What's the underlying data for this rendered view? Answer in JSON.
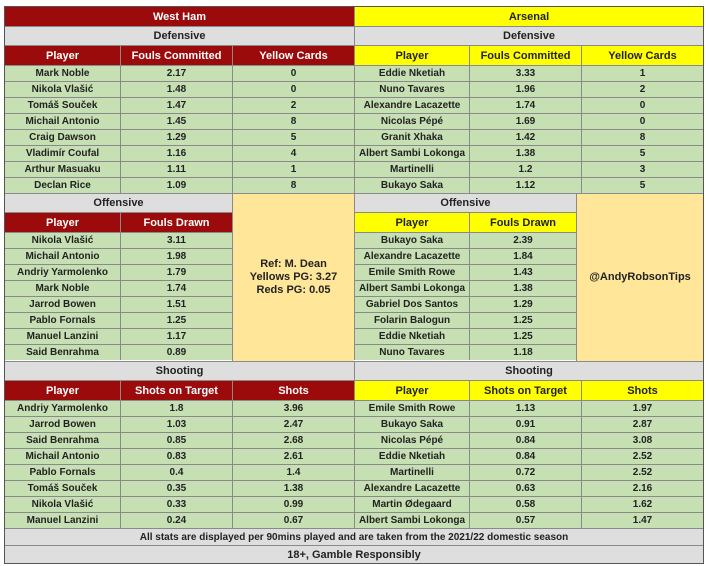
{
  "west_ham": {
    "team": "West Ham",
    "defensive": {
      "title": "Defensive",
      "columns": [
        "Player",
        "Fouls Committed",
        "Yellow Cards"
      ],
      "rows": [
        [
          "Mark Noble",
          "2.17",
          "0"
        ],
        [
          "Nikola Vlašić",
          "1.48",
          "0"
        ],
        [
          "Tomáš Souček",
          "1.47",
          "2"
        ],
        [
          "Michail Antonio",
          "1.45",
          "8"
        ],
        [
          "Craig Dawson",
          "1.29",
          "5"
        ],
        [
          "Vladimír Coufal",
          "1.16",
          "4"
        ],
        [
          "Arthur Masuaku",
          "1.11",
          "1"
        ],
        [
          "Declan Rice",
          "1.09",
          "8"
        ]
      ]
    },
    "offensive": {
      "title": "Offensive",
      "columns": [
        "Player",
        "Fouls Drawn"
      ],
      "rows": [
        [
          "Nikola Vlašić",
          "3.11"
        ],
        [
          "Michail Antonio",
          "1.98"
        ],
        [
          "Andriy Yarmolenko",
          "1.79"
        ],
        [
          "Mark Noble",
          "1.74"
        ],
        [
          "Jarrod Bowen",
          "1.51"
        ],
        [
          "Pablo Fornals",
          "1.25"
        ],
        [
          "Manuel Lanzini",
          "1.17"
        ],
        [
          "Said Benrahma",
          "0.89"
        ]
      ]
    },
    "ref_box": {
      "lines": [
        "Ref: M. Dean",
        "Yellows PG: 3.27",
        "Reds PG: 0.05"
      ]
    },
    "shooting": {
      "title": "Shooting",
      "columns": [
        "Player",
        "Shots on Target",
        "Shots"
      ],
      "rows": [
        [
          "Andriy Yarmolenko",
          "1.8",
          "3.96"
        ],
        [
          "Jarrod Bowen",
          "1.03",
          "2.47"
        ],
        [
          "Said Benrahma",
          "0.85",
          "2.68"
        ],
        [
          "Michail Antonio",
          "0.83",
          "2.61"
        ],
        [
          "Pablo Fornals",
          "0.4",
          "1.4"
        ],
        [
          "Tomáš Souček",
          "0.35",
          "1.38"
        ],
        [
          "Nikola Vlašić",
          "0.33",
          "0.99"
        ],
        [
          "Manuel Lanzini",
          "0.24",
          "0.67"
        ]
      ]
    }
  },
  "arsenal": {
    "team": "Arsenal",
    "defensive": {
      "title": "Defensive",
      "columns": [
        "Player",
        "Fouls Committed",
        "Yellow Cards"
      ],
      "rows": [
        [
          "Eddie Nketiah",
          "3.33",
          "1"
        ],
        [
          "Nuno Tavares",
          "1.96",
          "2"
        ],
        [
          "Alexandre Lacazette",
          "1.74",
          "0"
        ],
        [
          "Nicolas Pépé",
          "1.69",
          "0"
        ],
        [
          "Granit Xhaka",
          "1.42",
          "8"
        ],
        [
          "Albert Sambi Lokonga",
          "1.38",
          "5"
        ],
        [
          "Martinelli",
          "1.2",
          "3"
        ],
        [
          "Bukayo Saka",
          "1.12",
          "5"
        ]
      ]
    },
    "offensive": {
      "title": "Offensive",
      "columns": [
        "Player",
        "Fouls Drawn"
      ],
      "rows": [
        [
          "Bukayo Saka",
          "2.39"
        ],
        [
          "Alexandre Lacazette",
          "1.84"
        ],
        [
          "Emile Smith Rowe",
          "1.43"
        ],
        [
          "Albert Sambi Lokonga",
          "1.38"
        ],
        [
          "Gabriel Dos Santos",
          "1.29"
        ],
        [
          "Folarin Balogun",
          "1.25"
        ],
        [
          "Eddie Nketiah",
          "1.25"
        ],
        [
          "Nuno Tavares",
          "1.18"
        ]
      ]
    },
    "handle_box": {
      "text": "@AndyRobsonTips"
    },
    "shooting": {
      "title": "Shooting",
      "columns": [
        "Player",
        "Shots on Target",
        "Shots"
      ],
      "rows": [
        [
          "Emile Smith Rowe",
          "1.13",
          "1.97"
        ],
        [
          "Bukayo Saka",
          "0.91",
          "2.87"
        ],
        [
          "Nicolas Pépé",
          "0.84",
          "3.08"
        ],
        [
          "Eddie Nketiah",
          "0.84",
          "2.52"
        ],
        [
          "Martinelli",
          "0.72",
          "2.52"
        ],
        [
          "Alexandre Lacazette",
          "0.63",
          "2.16"
        ],
        [
          "Martin Ødegaard",
          "0.58",
          "1.62"
        ],
        [
          "Albert Sambi Lokonga",
          "0.57",
          "1.47"
        ]
      ]
    }
  },
  "footer": {
    "stats_note": "All stats are displayed per 90mins played and are taken from the 2021/22 domestic season",
    "gamble_note": "18+, Gamble Responsibly"
  },
  "colors": {
    "west_ham_header": "#9c0b0b",
    "arsenal_header": "#ffff00",
    "section_header": "#dedede",
    "data_cell": "#c6e0b4",
    "note_box": "#ffe699"
  }
}
